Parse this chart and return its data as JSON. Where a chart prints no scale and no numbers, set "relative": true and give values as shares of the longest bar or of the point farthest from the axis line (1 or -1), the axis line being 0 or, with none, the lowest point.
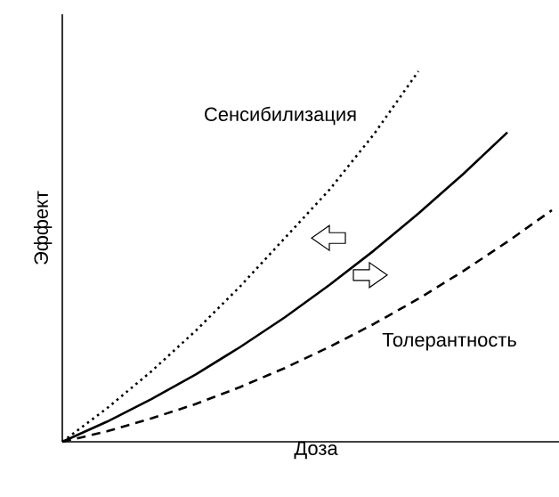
{
  "chart_data": {
    "type": "line",
    "relative": true,
    "xlabel": "Доза",
    "ylabel": "Эффект",
    "categories": [
      null,
      null,
      null,
      null,
      null,
      null,
      null,
      null,
      null,
      null,
      null,
      null
    ],
    "series": [
      {
        "name": "Сенсибилизация",
        "color": "#000000",
        "line_style": "dotted",
        "values": [
          0,
          0.09,
          0.19,
          0.3,
          0.42,
          0.55,
          0.68,
          0.83,
          1.0,
          null,
          null,
          null
        ]
      },
      {
        "color": "#000000",
        "line_style": "solid",
        "values": [
          0,
          0.054,
          0.115,
          0.182,
          0.256,
          0.336,
          0.423,
          0.516,
          0.616,
          0.722,
          0.835,
          null
        ]
      },
      {
        "name": "Толерантность",
        "color": "#000000",
        "line_style": "dashed",
        "values": [
          0,
          0.028,
          0.063,
          0.102,
          0.148,
          0.199,
          0.256,
          0.318,
          0.386,
          0.46,
          0.54,
          0.625
        ]
      }
    ],
    "marker": "none"
  }
}
